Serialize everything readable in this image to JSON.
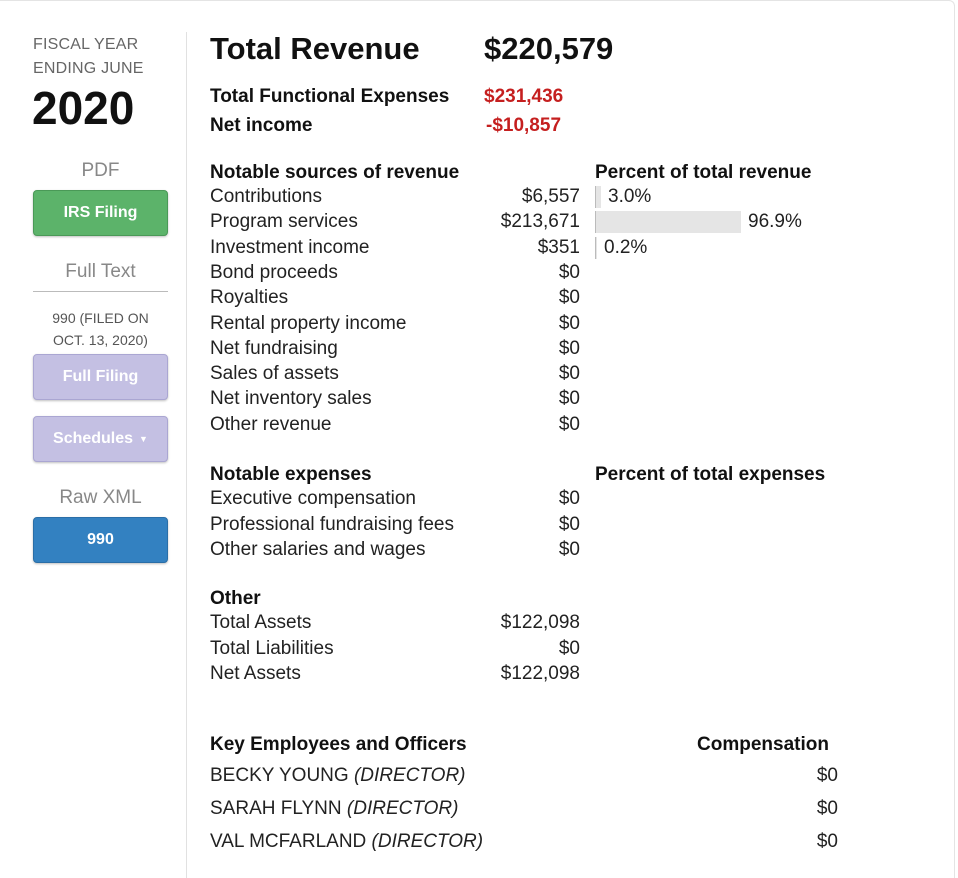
{
  "sidebar": {
    "fiscal_year_line1": "FISCAL YEAR",
    "fiscal_year_line2": "ENDING JUNE",
    "year": "2020",
    "pdf_heading": "PDF",
    "irs_filing_button": "IRS Filing",
    "full_text_heading": "Full Text",
    "filed_line1": "990 (FILED ON",
    "filed_line2": "OCT. 13, 2020)",
    "full_filing_button": "Full Filing",
    "schedules_button": "Schedules",
    "raw_xml_heading": "Raw XML",
    "xml_990_button": "990"
  },
  "summary": {
    "total_revenue_label": "Total Revenue",
    "total_revenue_value": "$220,579",
    "functional_expenses_label": "Total Functional Expenses",
    "functional_expenses_value": "$231,436",
    "net_income_label": "Net income",
    "net_income_value": "-$10,857"
  },
  "revenue": {
    "title": "Notable sources of revenue",
    "percent_title": "Percent of total revenue",
    "rows": [
      {
        "label": "Contributions",
        "value": "$6,557",
        "percent": "3.0%",
        "fraction": 0.03
      },
      {
        "label": "Program services",
        "value": "$213,671",
        "percent": "96.9%",
        "fraction": 0.969
      },
      {
        "label": "Investment income",
        "value": "$351",
        "percent": "0.2%",
        "fraction": 0.002
      },
      {
        "label": "Bond proceeds",
        "value": "$0"
      },
      {
        "label": "Royalties",
        "value": "$0"
      },
      {
        "label": "Rental property income",
        "value": "$0"
      },
      {
        "label": "Net fundraising",
        "value": "$0"
      },
      {
        "label": "Sales of assets",
        "value": "$0"
      },
      {
        "label": "Net inventory sales",
        "value": "$0"
      },
      {
        "label": "Other revenue",
        "value": "$0"
      }
    ]
  },
  "expenses": {
    "title": "Notable expenses",
    "percent_title": "Percent of total expenses",
    "rows": [
      {
        "label": "Executive compensation",
        "value": "$0"
      },
      {
        "label": "Professional fundraising fees",
        "value": "$0"
      },
      {
        "label": "Other salaries and wages",
        "value": "$0"
      }
    ]
  },
  "other": {
    "title": "Other",
    "rows": [
      {
        "label": "Total Assets",
        "value": "$122,098"
      },
      {
        "label": "Total Liabilities",
        "value": "$0"
      },
      {
        "label": "Net Assets",
        "value": "$122,098"
      }
    ]
  },
  "employees": {
    "title": "Key Employees and Officers",
    "comp_title": "Compensation",
    "rows": [
      {
        "name": "BECKY YOUNG",
        "role": "(DIRECTOR)",
        "comp": "$0"
      },
      {
        "name": "SARAH FLYNN",
        "role": "(DIRECTOR)",
        "comp": "$0"
      },
      {
        "name": "VAL MCFARLAND",
        "role": "(DIRECTOR)",
        "comp": "$0"
      }
    ]
  },
  "colors": {
    "negative": "#c51f1f",
    "irs_button": "#5cb36a",
    "filing_button": "#c4c0e3",
    "xml_button": "#3381c1"
  }
}
